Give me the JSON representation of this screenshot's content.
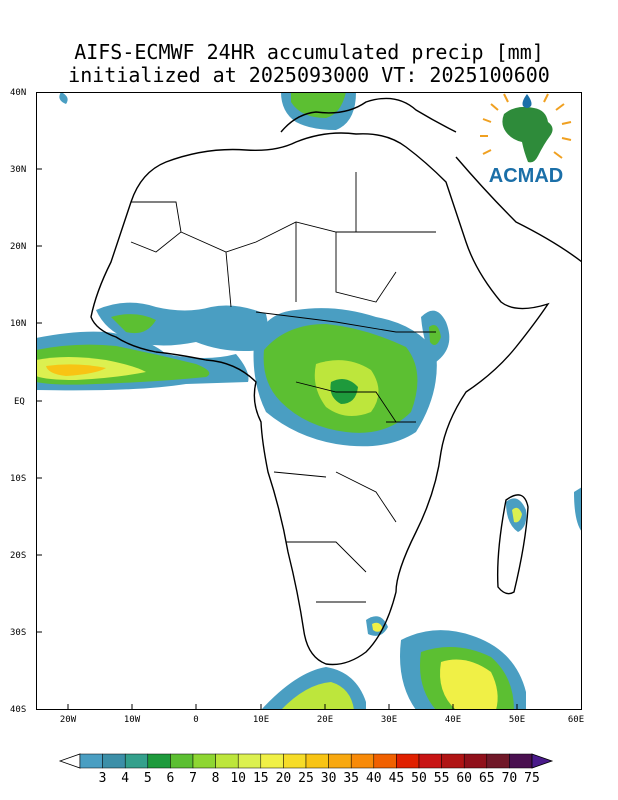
{
  "title": {
    "line1": "AIFS-ECMWF 24HR accumulated precip [mm]",
    "line2": "initialized at 2025093000 VT: 2025100600"
  },
  "axes": {
    "lat_labels": [
      "40N",
      "30N",
      "20N",
      "10N",
      "EQ",
      "10S",
      "20S",
      "30S",
      "40S"
    ],
    "lon_labels": [
      "20W",
      "10W",
      "0",
      "10E",
      "20E",
      "30E",
      "40E",
      "50E",
      "60E"
    ],
    "lat_range": [
      -40,
      40
    ],
    "lon_range": [
      -25,
      60
    ]
  },
  "logo": {
    "text": "ACMAD",
    "colors": {
      "continent": "#2e8b3a",
      "text": "#1b6fa8",
      "rays": "#f0a020",
      "drop": "#1b6fa8"
    }
  },
  "colorbar": {
    "labels": [
      "3",
      "4",
      "5",
      "6",
      "7",
      "8",
      "10",
      "15",
      "20",
      "25",
      "30",
      "35",
      "40",
      "45",
      "50",
      "55",
      "60",
      "65",
      "70",
      "75"
    ],
    "colors": [
      "#4a9ec2",
      "#3c8fa8",
      "#34a08c",
      "#1e9a3c",
      "#5cbf32",
      "#8ed632",
      "#bde63c",
      "#dcf050",
      "#f0f046",
      "#f6dc28",
      "#f8c414",
      "#f8a810",
      "#f88a08",
      "#f06000",
      "#e02000",
      "#c81414",
      "#b01414",
      "#90101a",
      "#701828",
      "#4a1050"
    ]
  }
}
